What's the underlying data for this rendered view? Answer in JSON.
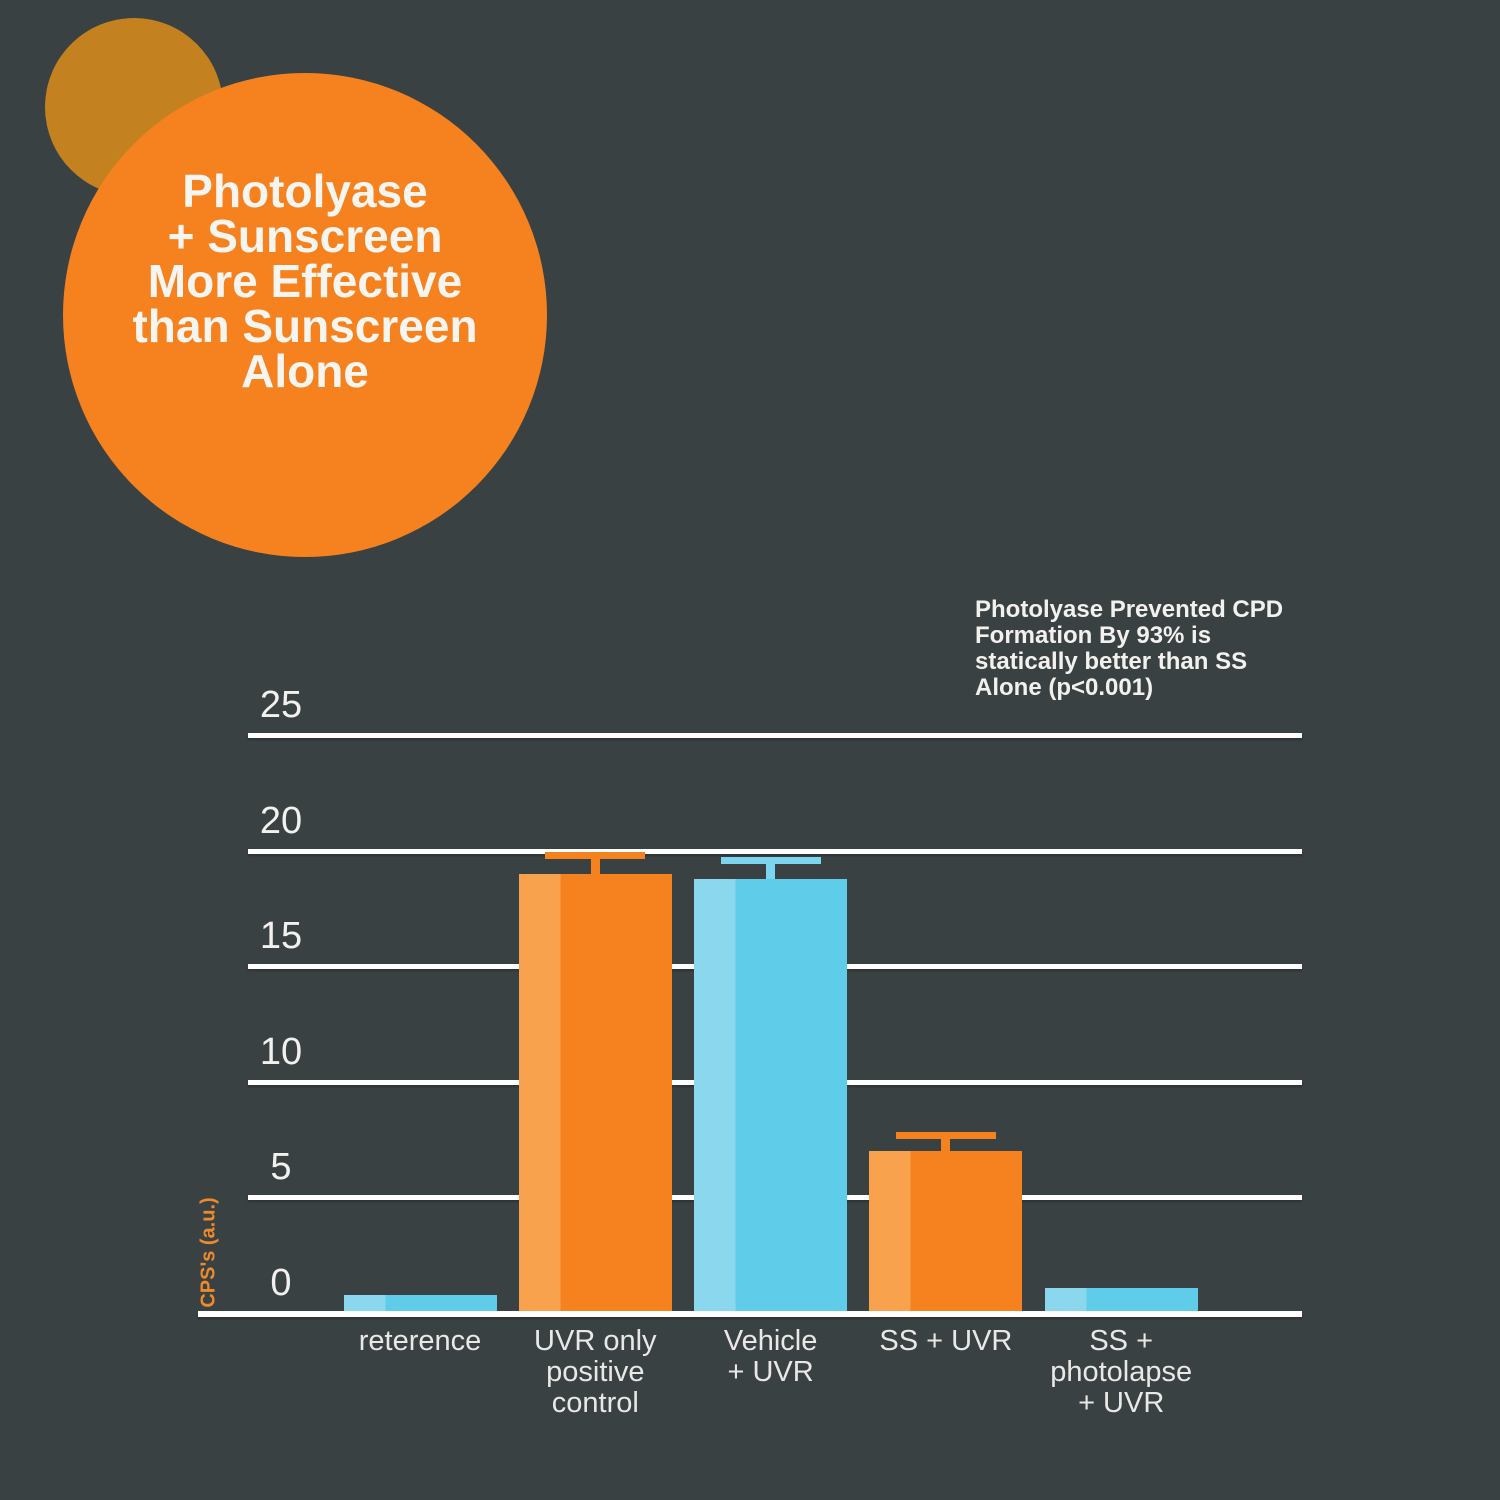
{
  "title_circle": {
    "text": "Photolyase\n+ Sunscreen\nMore Effective\nthan Sunscreen\nAlone",
    "circle_color": "#F5821F",
    "back_circle_color": "#C3811F",
    "text_color": "#F7F5F0"
  },
  "annotation": {
    "text": "Photolyase Prevented CPD\nFormation By 93% is\nstatically better than SS\nAlone (p<0.001)"
  },
  "chart_data": {
    "type": "bar",
    "ylabel": "CPS's (a.u.)",
    "xlabel": "",
    "title": "",
    "categories": [
      "reterence",
      "UVR only\npositive\ncontrol",
      "Vehicle\n+ UVR",
      "SS + UVR",
      "SS +\nphotolapse\n+ UVR"
    ],
    "values": [
      0.7,
      18.9,
      18.7,
      6.9,
      1.0
    ],
    "errors": [
      0,
      0.9,
      0.9,
      0.8,
      0
    ],
    "bar_colors": [
      "blue",
      "orange",
      "blue",
      "orange",
      "blue"
    ],
    "yticks": [
      0,
      5,
      10,
      15,
      20,
      25
    ],
    "ylim": [
      0,
      25
    ],
    "grid": "horizontal-white-lines",
    "legend": "none"
  },
  "palette": {
    "background": "#3A4143",
    "orange": "#F5821F",
    "orange_light": "#F9A24E",
    "blue": "#5FCDE9",
    "blue_light": "#8AD7EE",
    "blue_error": "#7BD5EF",
    "gridline": "#FFFFFF",
    "axis_text": "#F2F1EE",
    "ylabel_color": "#EE8A2B"
  }
}
